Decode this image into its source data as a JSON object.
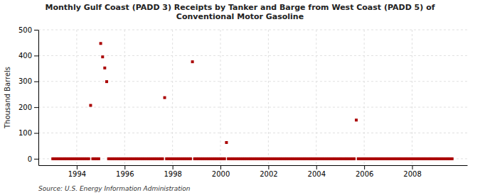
{
  "chart_data": {
    "type": "scatter",
    "title": "Monthly Gulf Coast (PADD 3) Receipts by Tanker and Barge from West Coast (PADD 5) of\nConventional Motor Gasoline",
    "ylabel": "Thousand Barrels",
    "annotation": "Source: U.S. Energy Information Administration",
    "color": "#aa0000",
    "marker": "square",
    "grid": true,
    "xlim": [
      1992.4,
      2010.3
    ],
    "ylim": [
      -25,
      500
    ],
    "xticks": [
      1994,
      1996,
      1998,
      2000,
      2002,
      2004,
      2006,
      2008
    ],
    "yticks": [
      0,
      100,
      200,
      300,
      400,
      500
    ],
    "x": [
      1993.0,
      1993.08,
      1993.17,
      1993.25,
      1993.33,
      1993.42,
      1993.5,
      1993.58,
      1993.67,
      1993.75,
      1993.83,
      1993.92,
      1994.0,
      1994.08,
      1994.17,
      1994.25,
      1994.33,
      1994.42,
      1994.5,
      1994.58,
      1994.67,
      1994.75,
      1994.83,
      1994.92,
      1995.0,
      1995.08,
      1995.17,
      1995.25,
      1995.33,
      1995.42,
      1995.5,
      1995.58,
      1995.67,
      1995.75,
      1995.83,
      1995.92,
      1996.0,
      1996.08,
      1996.17,
      1996.25,
      1996.33,
      1996.42,
      1996.5,
      1996.58,
      1996.67,
      1996.75,
      1996.83,
      1996.92,
      1997.0,
      1997.08,
      1997.17,
      1997.25,
      1997.33,
      1997.42,
      1997.5,
      1997.58,
      1997.67,
      1997.75,
      1997.83,
      1997.92,
      1998.0,
      1998.08,
      1998.17,
      1998.25,
      1998.33,
      1998.42,
      1998.5,
      1998.58,
      1998.67,
      1998.75,
      1998.83,
      1998.92,
      1999.0,
      1999.08,
      1999.17,
      1999.25,
      1999.33,
      1999.42,
      1999.5,
      1999.58,
      1999.67,
      1999.75,
      1999.83,
      1999.92,
      2000.0,
      2000.08,
      2000.17,
      2000.25,
      2000.33,
      2000.42,
      2000.5,
      2000.58,
      2000.67,
      2000.75,
      2000.83,
      2000.92,
      2001.0,
      2001.08,
      2001.17,
      2001.25,
      2001.33,
      2001.42,
      2001.5,
      2001.58,
      2001.67,
      2001.75,
      2001.83,
      2001.92,
      2002.0,
      2002.08,
      2002.17,
      2002.25,
      2002.33,
      2002.42,
      2002.5,
      2002.58,
      2002.67,
      2002.75,
      2002.83,
      2002.92,
      2003.0,
      2003.08,
      2003.17,
      2003.25,
      2003.33,
      2003.42,
      2003.5,
      2003.58,
      2003.67,
      2003.75,
      2003.83,
      2003.92,
      2004.0,
      2004.08,
      2004.17,
      2004.25,
      2004.33,
      2004.42,
      2004.5,
      2004.58,
      2004.67,
      2004.75,
      2004.83,
      2004.92,
      2005.0,
      2005.08,
      2005.17,
      2005.25,
      2005.33,
      2005.42,
      2005.5,
      2005.58,
      2005.67,
      2005.75,
      2005.83,
      2005.92,
      2006.0,
      2006.08,
      2006.17,
      2006.25,
      2006.33,
      2006.42,
      2006.5,
      2006.58,
      2006.67,
      2006.75,
      2006.83,
      2006.92,
      2007.0,
      2007.08,
      2007.17,
      2007.25,
      2007.33,
      2007.42,
      2007.5,
      2007.58,
      2007.67,
      2007.75,
      2007.83,
      2007.92,
      2008.0,
      2008.08,
      2008.17,
      2008.25,
      2008.33,
      2008.42,
      2008.5,
      2008.58,
      2008.67,
      2008.75,
      2008.83,
      2008.92,
      2009.0,
      2009.08,
      2009.17,
      2009.25,
      2009.33,
      2009.42,
      2009.5,
      2009.58,
      2009.67
    ],
    "values": [
      0,
      0,
      0,
      0,
      0,
      0,
      0,
      0,
      0,
      0,
      0,
      0,
      0,
      0,
      0,
      0,
      0,
      0,
      0,
      207,
      0,
      0,
      0,
      0,
      447,
      395,
      352,
      299,
      0,
      0,
      0,
      0,
      0,
      0,
      0,
      0,
      0,
      0,
      0,
      0,
      0,
      0,
      0,
      0,
      0,
      0,
      0,
      0,
      0,
      0,
      0,
      0,
      0,
      0,
      0,
      0,
      237,
      0,
      0,
      0,
      0,
      0,
      0,
      0,
      0,
      0,
      0,
      0,
      0,
      0,
      376,
      0,
      0,
      0,
      0,
      0,
      0,
      0,
      0,
      0,
      0,
      0,
      0,
      0,
      0,
      0,
      0,
      63,
      0,
      0,
      0,
      0,
      0,
      0,
      0,
      0,
      0,
      0,
      0,
      0,
      0,
      0,
      0,
      0,
      0,
      0,
      0,
      0,
      0,
      0,
      0,
      0,
      0,
      0,
      0,
      0,
      0,
      0,
      0,
      0,
      0,
      0,
      0,
      0,
      0,
      0,
      0,
      0,
      0,
      0,
      0,
      0,
      0,
      0,
      0,
      0,
      0,
      0,
      0,
      0,
      0,
      0,
      0,
      0,
      0,
      0,
      0,
      0,
      0,
      0,
      0,
      0,
      150,
      0,
      0,
      0,
      0,
      0,
      0,
      0,
      0,
      0,
      0,
      0,
      0,
      0,
      0,
      0,
      0,
      0,
      0,
      0,
      0,
      0,
      0,
      0,
      0,
      0,
      0,
      0,
      0,
      0,
      0,
      0,
      0,
      0,
      0,
      0,
      0,
      0,
      0,
      0,
      0,
      0,
      0,
      0,
      0,
      0,
      0,
      0,
      0
    ]
  }
}
